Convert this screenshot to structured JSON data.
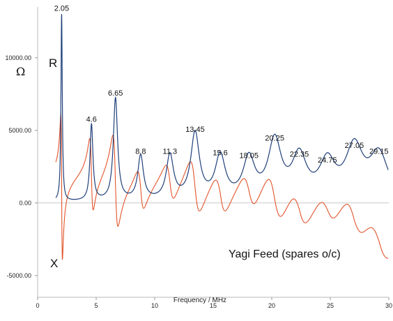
{
  "chart_data": {
    "type": "line",
    "title": "",
    "xlabel": "Frequency / MHz",
    "ylabel": "Ω",
    "xlim": [
      0,
      30
    ],
    "ylim": [
      -6500,
      13500
    ],
    "x_ticks": [
      0,
      5,
      10,
      15,
      20,
      25,
      30
    ],
    "x_tick_labels": [
      "0",
      "5",
      "10",
      "15",
      "20",
      "25",
      "30"
    ],
    "y_ticks": [
      10000,
      5000,
      0,
      -5000
    ],
    "y_tick_labels": [
      "10000.00",
      "5000.00",
      "0.00",
      "-5000.00"
    ],
    "grid": false,
    "annotation": "Yagi Feed (spares o/c)",
    "series": [
      {
        "name": "R",
        "color": "#1f3f7a"
      },
      {
        "name": "X",
        "color": "#e2532a"
      }
    ],
    "resonances": [
      {
        "label": "2.05",
        "freq": 2.05,
        "r_peak": 12950,
        "x_max": 4400,
        "x_min": -5700
      },
      {
        "label": "4.6",
        "freq": 4.6,
        "r_peak": 5300,
        "x_max": 2700,
        "x_min": -2400
      },
      {
        "label": "6.65",
        "freq": 6.65,
        "r_peak": 7100,
        "x_max": 3500,
        "x_min": -3000
      },
      {
        "label": "8.8",
        "freq": 8.8,
        "r_peak": 3100,
        "x_max": 1300,
        "x_min": -1600
      },
      {
        "label": "11.3",
        "freq": 11.3,
        "r_peak": 3100,
        "x_max": 1400,
        "x_min": -1400
      },
      {
        "label": "13.45",
        "freq": 13.45,
        "r_peak": 4600,
        "x_max": 2100,
        "x_min": -1900
      },
      {
        "label": "15.6",
        "freq": 15.6,
        "r_peak": 3000,
        "x_max": 1300,
        "x_min": -1600
      },
      {
        "label": "18.05",
        "freq": 18.05,
        "r_peak": 2800,
        "x_max": 1300,
        "x_min": -1400
      },
      {
        "label": "20.25",
        "freq": 20.25,
        "r_peak": 4000,
        "x_max": 1900,
        "x_min": -1700
      },
      {
        "label": "22.35",
        "freq": 22.35,
        "r_peak": 2900,
        "x_max": 1300,
        "x_min": -1500
      },
      {
        "label": "24.75",
        "freq": 24.75,
        "r_peak": 2500,
        "x_max": 1100,
        "x_min": -1200
      },
      {
        "label": "27.05",
        "freq": 27.05,
        "r_peak": 3500,
        "x_max": 1700,
        "x_min": -1400
      },
      {
        "label": "29.15",
        "freq": 29.15,
        "r_peak": 3100,
        "x_max": 1400,
        "x_min": -1600
      }
    ]
  }
}
